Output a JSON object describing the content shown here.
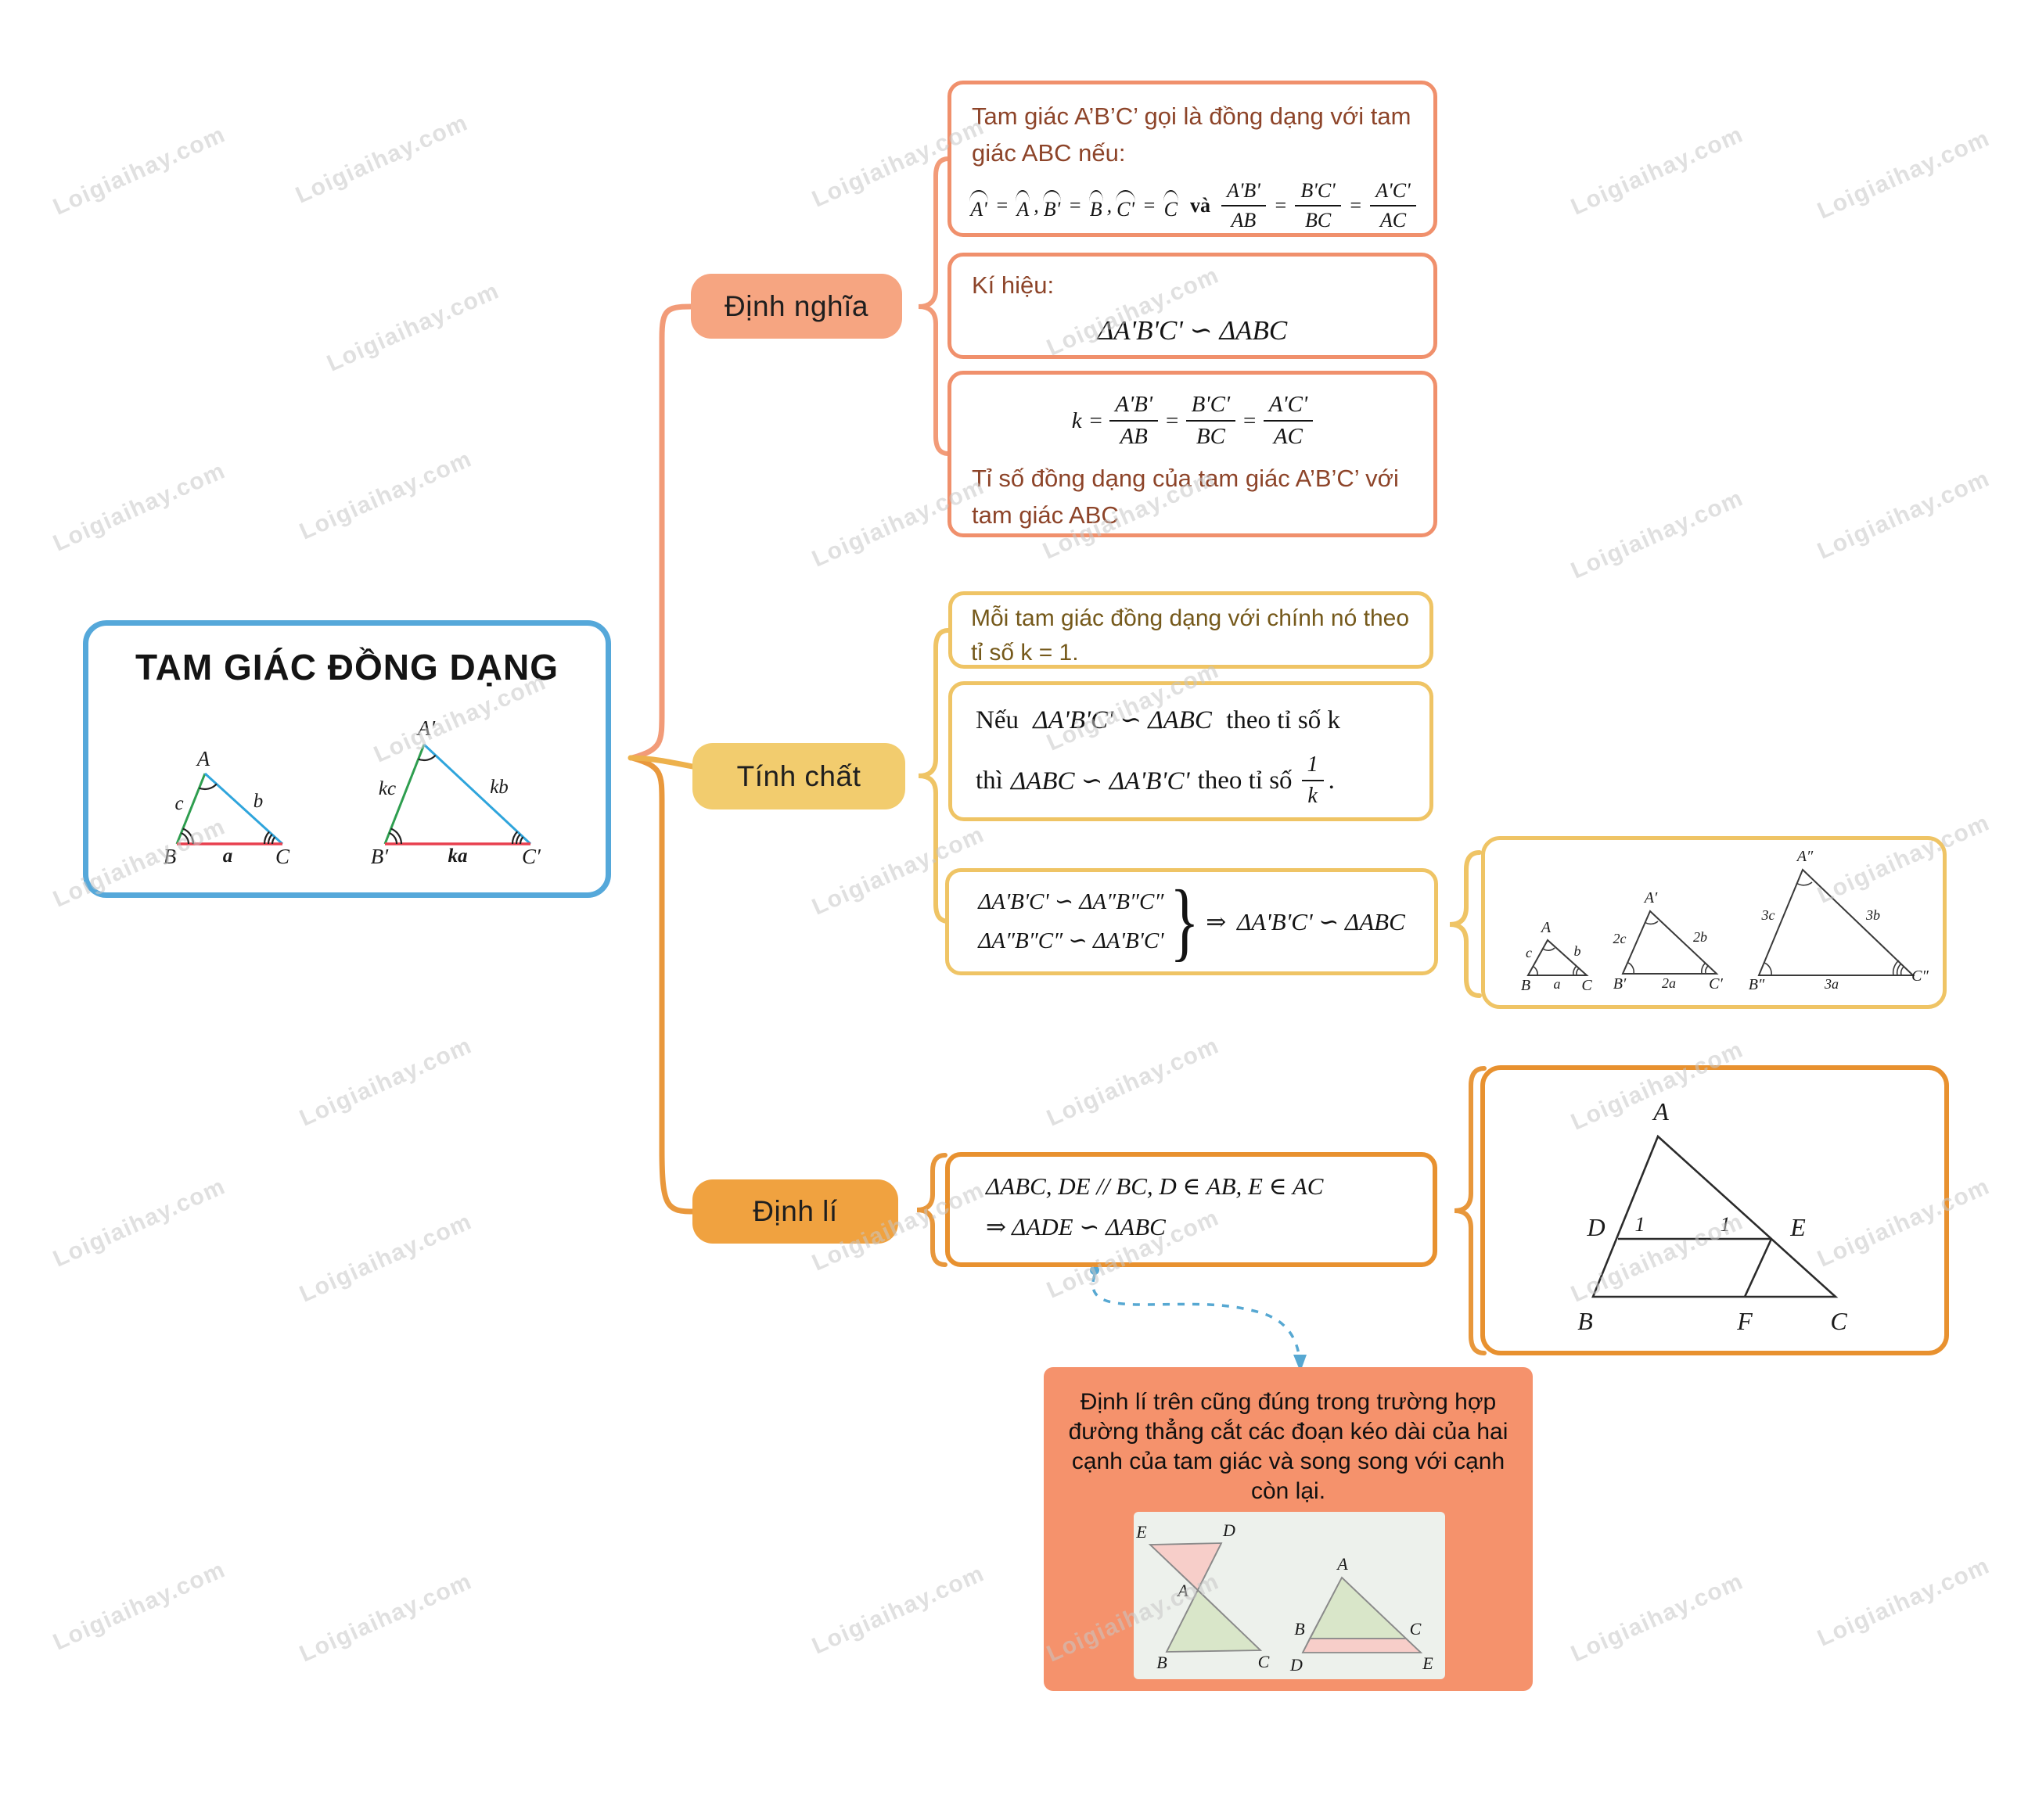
{
  "watermark": "Loigiaihay.com",
  "colors": {
    "main_border": "#55A8DA",
    "definition_accent": "#F0906C",
    "definition_label_bg": "#F6A581",
    "property_accent": "#EFC465",
    "property_label_bg": "#F2CC6E",
    "theorem_accent": "#E8912F",
    "theorem_label_bg": "#F0A240",
    "note_bg": "#F5926C",
    "side_a_red": "#E8404F",
    "side_b_blue": "#2FA5DC",
    "side_c_green": "#2E9E4F",
    "dashed_arrow_blue": "#57A8D2"
  },
  "main_topic": {
    "title": "TAM GIÁC ĐỒNG DẠNG",
    "fig": {
      "A": "A",
      "B": "B",
      "C": "C",
      "a": "a",
      "b": "b",
      "c": "c",
      "A2": "A′",
      "B2": "B′",
      "C2": "C′",
      "ka": "ka",
      "kb": "kb",
      "kc": "kc"
    }
  },
  "definition": {
    "label": "Định nghĩa",
    "box1": {
      "intro": "Tam giác A’B’C’ gọi là đồng dạng với tam giác ABC nếu:",
      "t1": "A'",
      "t2": "A",
      "t3": "B'",
      "t4": "B",
      "t5": "C'",
      "t6": "C",
      "eq": "=",
      "comma": ",",
      "va": "và",
      "f1n": "A'B'",
      "f1d": "AB",
      "f2n": "B'C'",
      "f2d": "BC",
      "f3n": "A'C'",
      "f3d": "AC"
    },
    "box2": {
      "title": "Kí hiệu:",
      "formula": "ΔA'B'C' ∽ ΔABC"
    },
    "box3": {
      "k": "k",
      "eq": "=",
      "f1n": "A'B'",
      "f1d": "AB",
      "f2n": "B'C'",
      "f2d": "BC",
      "f3n": "A'C'",
      "f3d": "AC",
      "caption": "Tỉ số đồng dạng của tam giác A’B’C’ với tam giác ABC"
    }
  },
  "property": {
    "label": "Tính chất",
    "box1": {
      "text": "Mỗi tam giác đồng dạng với chính nó theo tỉ số k = 1."
    },
    "box2": {
      "l1a": "Nếu",
      "l1b": "ΔA'B'C' ∽ ΔABC",
      "l1c": "theo tỉ số k",
      "l2a": "thì",
      "l2b": "ΔABC ∽ ΔA'B'C'",
      "l2c": "theo tỉ số",
      "fn": "1",
      "fd": "k",
      "dot": "."
    },
    "box3": {
      "line1": "ΔA'B'C' ∽ ΔA″B″C″",
      "line2": "ΔA″B″C″ ∽ ΔA'B'C'",
      "brace": "}",
      "arrow": "⇒",
      "result": "ΔA'B'C' ∽ ΔABC"
    },
    "fig": {
      "A": "A",
      "B": "B",
      "C": "C",
      "a": "a",
      "b": "b",
      "c": "c",
      "A2": "A′",
      "B2": "B′",
      "C2": "C′",
      "a2": "2a",
      "b2": "2b",
      "c2": "2c",
      "A3": "A″",
      "B3": "B″",
      "C3": "C″",
      "a3": "3a",
      "b3": "3b",
      "c3": "3c"
    }
  },
  "theorem": {
    "label": "Định lí",
    "box1": {
      "line1": "ΔABC, DE // BC, D ∈ AB, E ∈ AC",
      "line2": "⇒ ΔADE ∽ ΔABC"
    },
    "fig": {
      "A": "A",
      "B": "B",
      "C": "C",
      "D": "D",
      "E": "E",
      "F": "F",
      "one": "1"
    },
    "note": {
      "text": "Định lí trên cũng đúng trong trường hợp đường thẳng cắt các đoạn kéo dài của hai cạnh của tam giác và song song với cạnh còn lại.",
      "figL": {
        "A": "A",
        "B": "B",
        "C": "C",
        "D": "D",
        "E": "E"
      },
      "figR": {
        "A": "A",
        "B": "B",
        "C": "C",
        "D": "D",
        "E": "E"
      }
    }
  }
}
